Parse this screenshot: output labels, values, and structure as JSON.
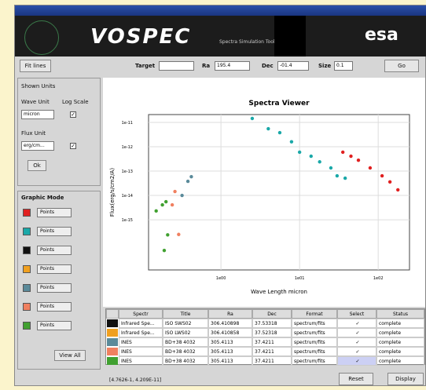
{
  "banner": {
    "logo": "VOSPEC",
    "subtitle": "Spectra Simulation Tool",
    "agency": "esa"
  },
  "toolbar": {
    "fit_button": "Fit lines",
    "target_label": "Target",
    "ra_label": "Ra",
    "ra_value": "195.4",
    "dec_label": "Dec",
    "dec_value": "-01.4",
    "size_label": "Size",
    "size_value": "0.1",
    "go_button": "Go"
  },
  "units_panel": {
    "title": "Shown Units",
    "wave_label": "Wave Unit",
    "log_label": "Log Scale",
    "wave_value": "micron",
    "flux_label": "Flux Unit",
    "flux_value": "erg/cm...",
    "ok_button": "Ok"
  },
  "graphic_panel": {
    "title": "Graphic Mode",
    "rows": [
      {
        "color": "#e02020",
        "mode": "Points"
      },
      {
        "color": "#1aa8a8",
        "mode": "Points"
      },
      {
        "color": "#111111",
        "mode": "Points"
      },
      {
        "color": "#f0a020",
        "mode": "Points"
      },
      {
        "color": "#5a8a9a",
        "mode": "Points"
      },
      {
        "color": "#f08060",
        "mode": "Points"
      },
      {
        "color": "#40a030",
        "mode": "Points"
      }
    ],
    "view_all": "View All"
  },
  "chart_data": {
    "type": "scatter",
    "title": "Spectra Viewer",
    "x_label": "Wave Length micron",
    "y_label": "Flux(erg/s/cm2/A)",
    "xlog": true,
    "ylog": true,
    "xlim": [
      0.12,
      250
    ],
    "ylim": [
      8.7e-18,
      2.1e-11
    ],
    "xticks": [
      {
        "value": 1,
        "label": "1e00"
      },
      {
        "value": 10,
        "label": "1e01"
      },
      {
        "value": 100,
        "label": "1e02"
      }
    ],
    "yticks": [
      1e-11,
      1e-12,
      1e-13,
      1e-14,
      1e-15
    ],
    "grid": true,
    "series": [
      {
        "color": "#1aa8a8",
        "x": [
          2.5,
          4.0,
          5.6,
          7.9,
          10,
          14,
          18,
          25,
          30,
          38
        ],
        "values": [
          1.45e-11,
          5.5e-12,
          3.8e-12,
          1.6e-12,
          6e-13,
          4.1e-13,
          2.4e-13,
          1.35e-13,
          6.4e-14,
          5.1e-14
        ]
      },
      {
        "color": "#e02020",
        "x": [
          35.5,
          45,
          56,
          79,
          112,
          141,
          178
        ],
        "values": [
          6e-13,
          4.1e-13,
          2.8e-13,
          1.35e-13,
          6.4e-14,
          3.6e-14,
          1.7e-14
        ]
      },
      {
        "color": "#40a030",
        "x": [
          0.15,
          0.18,
          0.2,
          0.21,
          0.19
        ],
        "values": [
          2.3e-15,
          4.1e-15,
          5.5e-15,
          2.4e-16,
          5.5e-17
        ]
      },
      {
        "color": "#f08060",
        "x": [
          0.24,
          0.26,
          0.29
        ],
        "values": [
          4.1e-15,
          1.45e-14,
          2.5e-16
        ]
      },
      {
        "color": "#5a8a9a",
        "x": [
          0.32,
          0.38,
          0.42
        ],
        "values": [
          1e-14,
          3.8e-14,
          5.9e-14
        ]
      }
    ]
  },
  "table": {
    "columns": [
      "Spectr",
      "Title",
      "Ra",
      "Dec",
      "Format",
      "Select",
      "Status"
    ],
    "rows": [
      {
        "color": "#111111",
        "cells": [
          "Infrared Spe...",
          "ISO SWS02",
          "306.410898",
          "37.53318",
          "spectrum/fits",
          "✓",
          "complete"
        ]
      },
      {
        "color": "#f0a020",
        "cells": [
          "Infrared Spe...",
          "ISO LWS02",
          "306.410858",
          "37.52318",
          "spectrum/fits",
          "✓",
          "complete"
        ]
      },
      {
        "color": "#5a8a9a",
        "cells": [
          "INES",
          "BD+38 4032",
          "305.4113",
          "37.4211",
          "spectrum/fits",
          "✓",
          "complete"
        ]
      },
      {
        "color": "#f08060",
        "cells": [
          "INES",
          "BD+38 4032",
          "305.4113",
          "37.4211",
          "spectrum/fits",
          "✓",
          "complete"
        ]
      },
      {
        "color": "#40a030",
        "cells": [
          "INES",
          "BD+38 4032",
          "305.4113",
          "37.4211",
          "spectrum/fits",
          "✓",
          "complete"
        ]
      }
    ]
  },
  "status": {
    "coords": "[4.7626-1, 4.209E-11]",
    "reset": "Reset",
    "display": "Display"
  }
}
